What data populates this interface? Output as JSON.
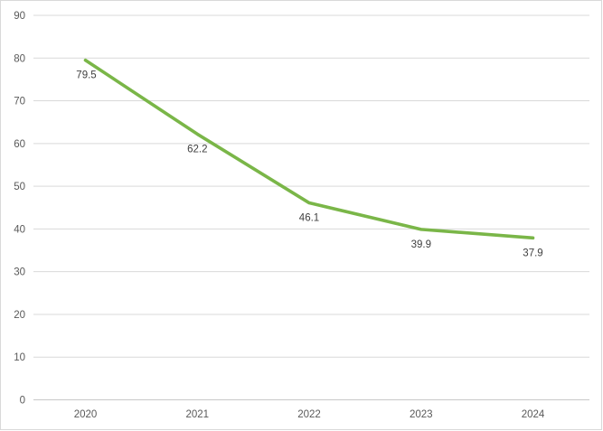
{
  "chart_data": {
    "type": "line",
    "title": "",
    "xlabel": "",
    "ylabel": "",
    "categories": [
      "2020",
      "2021",
      "2022",
      "2023",
      "2024"
    ],
    "series": [
      {
        "name": "series-1",
        "values": [
          79.5,
          62.2,
          46.1,
          39.9,
          37.9
        ],
        "color": "#7AB648"
      }
    ],
    "data_labels": [
      "79.5",
      "62.2",
      "46.1",
      "39.9",
      "37.9"
    ],
    "y_ticks": [
      0,
      10,
      20,
      30,
      40,
      50,
      60,
      70,
      80,
      90
    ],
    "ylim": [
      0,
      90
    ],
    "grid": true,
    "legend_position": "none"
  },
  "colors": {
    "line": "#7AB648",
    "gridline": "#D9D9D9",
    "axis_line": "#C8C8C8",
    "tick_text": "#595959",
    "data_label_text": "#404040",
    "frame_border": "#D9D9D9",
    "background": "#FFFFFF"
  }
}
